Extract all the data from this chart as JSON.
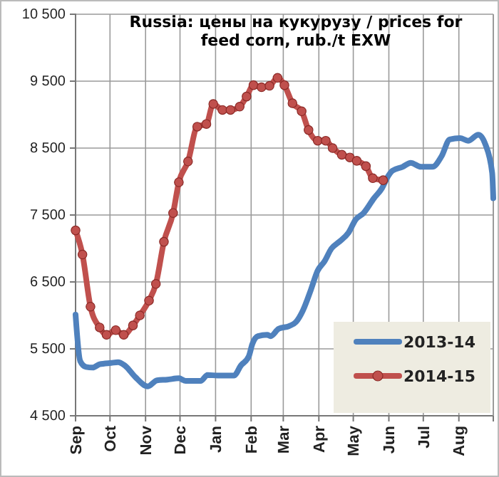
{
  "chart_data": {
    "type": "line",
    "title": "Russia: цены на кукурузу / prices for feed corn, rub./t EXW",
    "xlim": [
      "2013-09-01",
      "2014-08-31"
    ],
    "xticks": [
      {
        "value": "2013-09-01",
        "label": "Sep"
      },
      {
        "value": "2013-10-01",
        "label": "Oct"
      },
      {
        "value": "2013-11-01",
        "label": "Nov"
      },
      {
        "value": "2013-12-01",
        "label": "Dec"
      },
      {
        "value": "2014-01-01",
        "label": "Jan"
      },
      {
        "value": "2014-02-01",
        "label": "Feb"
      },
      {
        "value": "2014-03-01",
        "label": "Mar"
      },
      {
        "value": "2014-04-01",
        "label": "Apr"
      },
      {
        "value": "2014-05-01",
        "label": "May"
      },
      {
        "value": "2014-06-01",
        "label": "Jun"
      },
      {
        "value": "2014-07-01",
        "label": "Jul"
      },
      {
        "value": "2014-08-01",
        "label": "Aug"
      }
    ],
    "ylim": [
      4500,
      10500
    ],
    "yticks": [
      {
        "value": 4500,
        "label": "4 500"
      },
      {
        "value": 5500,
        "label": "5 500"
      },
      {
        "value": 6500,
        "label": "6 500"
      },
      {
        "value": 7500,
        "label": "7 500"
      },
      {
        "value": 8500,
        "label": "8 500"
      },
      {
        "value": 9500,
        "label": "9 500"
      },
      {
        "value": 10500,
        "label": "10 500"
      }
    ],
    "grid": true,
    "legend": "bottom right",
    "series": [
      {
        "name": "2013-14",
        "color": "#4f81bd",
        "marker": "none",
        "x": [
          "2013-09-01",
          "2013-09-05",
          "2013-09-10",
          "2013-09-16",
          "2013-09-22",
          "2013-10-02",
          "2013-10-08",
          "2013-10-14",
          "2013-10-23",
          "2013-11-03",
          "2013-11-11",
          "2013-11-20",
          "2013-11-30",
          "2013-12-06",
          "2013-12-19",
          "2013-12-25",
          "2014-01-03",
          "2014-01-17",
          "2014-01-23",
          "2014-01-30",
          "2014-02-02",
          "2014-02-07",
          "2014-02-15",
          "2014-02-18",
          "2014-02-25",
          "2014-03-06",
          "2014-03-12",
          "2014-03-18",
          "2014-03-25",
          "2014-03-31",
          "2014-04-06",
          "2014-04-12",
          "2014-04-18",
          "2014-04-27",
          "2014-05-03",
          "2014-05-10",
          "2014-05-19",
          "2014-05-26",
          "2014-05-31",
          "2014-06-04",
          "2014-06-13",
          "2014-06-20",
          "2014-06-29",
          "2014-07-09",
          "2014-07-17",
          "2014-07-24",
          "2014-08-02",
          "2014-08-09",
          "2014-08-18",
          "2014-08-24",
          "2014-08-30",
          "2014-08-31"
        ],
        "values": [
          6010,
          5320,
          5230,
          5220,
          5270,
          5290,
          5300,
          5250,
          5080,
          4940,
          5030,
          5040,
          5060,
          5020,
          5020,
          5110,
          5100,
          5100,
          5250,
          5390,
          5570,
          5690,
          5710,
          5690,
          5800,
          5840,
          5900,
          6070,
          6380,
          6670,
          6810,
          7000,
          7090,
          7240,
          7430,
          7530,
          7750,
          7900,
          8070,
          8160,
          8220,
          8280,
          8220,
          8220,
          8380,
          8630,
          8650,
          8610,
          8700,
          8560,
          8130,
          7750
        ]
      },
      {
        "name": "2014-15",
        "color": "#c0504d",
        "marker": "circle",
        "x": [
          "2013-09-01",
          "2013-09-07",
          "2013-09-14",
          "2013-09-22",
          "2013-09-28",
          "2013-10-06",
          "2013-10-13",
          "2013-10-21",
          "2013-10-27",
          "2013-11-04",
          "2013-11-10",
          "2013-11-17",
          "2013-11-25",
          "2013-11-30",
          "2013-12-08",
          "2013-12-16",
          "2013-12-24",
          "2013-12-30",
          "2014-01-07",
          "2014-01-14",
          "2014-01-22",
          "2014-01-28",
          "2014-02-03",
          "2014-02-10",
          "2014-02-17",
          "2014-02-24",
          "2014-03-02",
          "2014-03-09",
          "2014-03-17",
          "2014-03-23",
          "2014-03-31",
          "2014-04-07",
          "2014-04-13",
          "2014-04-21",
          "2014-04-28",
          "2014-05-04",
          "2014-05-12",
          "2014-05-18",
          "2014-05-27"
        ],
        "values": [
          7270,
          6910,
          6130,
          5820,
          5710,
          5780,
          5710,
          5850,
          6000,
          6220,
          6470,
          7100,
          7530,
          7990,
          8300,
          8820,
          8860,
          9160,
          9070,
          9070,
          9120,
          9270,
          9440,
          9410,
          9430,
          9550,
          9440,
          9170,
          9050,
          8770,
          8610,
          8610,
          8500,
          8400,
          8360,
          8310,
          8230,
          8050,
          8020
        ]
      }
    ]
  }
}
